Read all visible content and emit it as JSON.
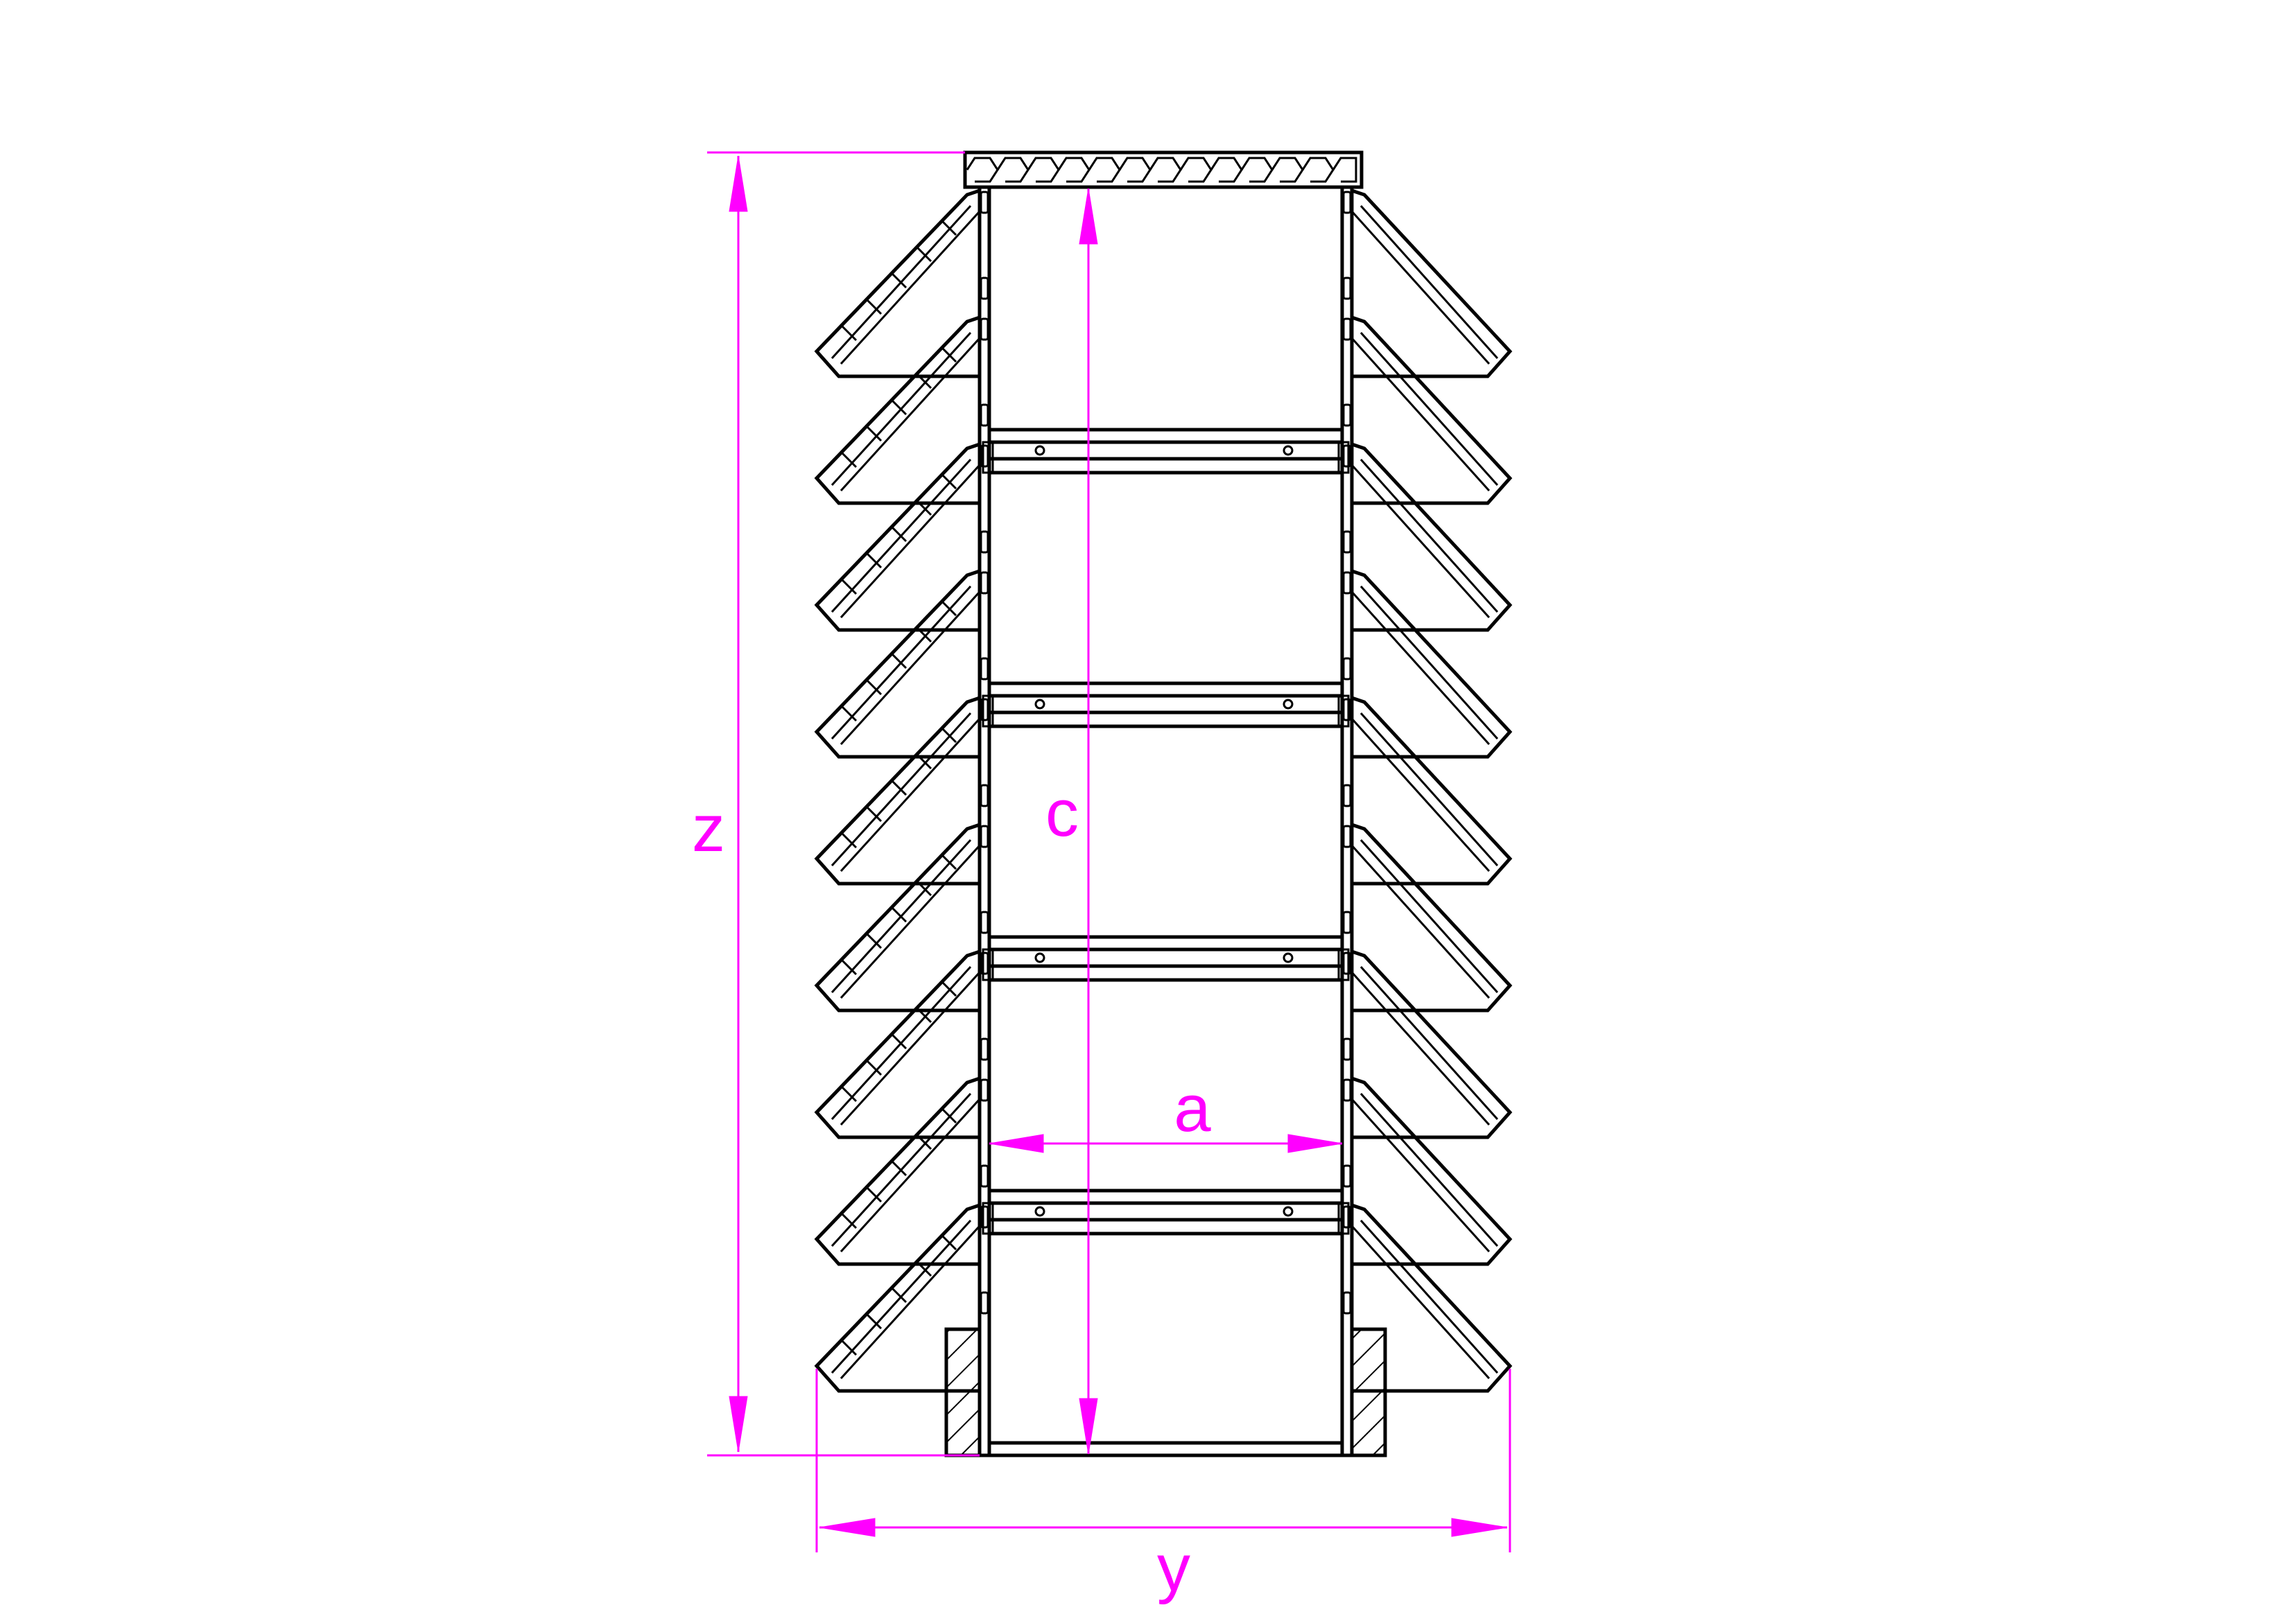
{
  "colors": {
    "line": "#000000",
    "dimension": "#ff00ff",
    "background": "#ffffff"
  },
  "dimensions": {
    "total_height": "z",
    "inner_height": "c",
    "inner_width": "a",
    "total_width": "y"
  },
  "structure": {
    "louver_count_per_side": 9,
    "shelf_count": 4,
    "top_cap": "hexagon-pattern-cap",
    "base": "hatched-base-blocks"
  }
}
